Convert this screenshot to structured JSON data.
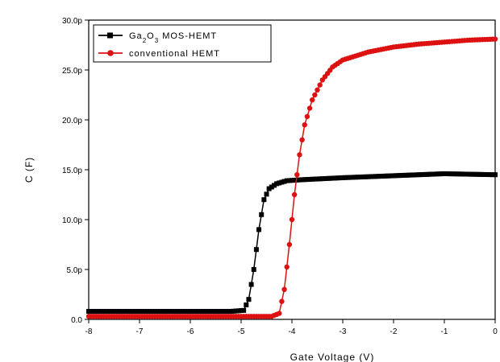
{
  "chart_data": {
    "type": "line",
    "title": "",
    "xlabel": "Gate Voltage (V)",
    "ylabel": "C (F)",
    "xlim": [
      -8,
      0
    ],
    "ylim": [
      0,
      30
    ],
    "x_ticks": [
      -8,
      -7,
      -6,
      -5,
      -4,
      -3,
      -2,
      -1,
      0
    ],
    "x_tick_labels": [
      "-8",
      "-7",
      "-6",
      "-5",
      "-4",
      "-3",
      "-2",
      "-1",
      "0"
    ],
    "y_ticks": [
      0,
      5,
      10,
      15,
      20,
      25,
      30
    ],
    "y_tick_labels": [
      "0.0",
      "5.0p",
      "10.0p",
      "15.0p",
      "20.0p",
      "25.0p",
      "30.0p"
    ],
    "legend_position": "top-left",
    "series": [
      {
        "name": "Ga2O3 MOS-HEMT",
        "legend_parts": [
          {
            "text": "Ga",
            "sub": false
          },
          {
            "text": "2",
            "sub": true
          },
          {
            "text": "O",
            "sub": false
          },
          {
            "text": "3",
            "sub": true
          },
          {
            "text": " MOS-HEMT",
            "sub": false
          }
        ],
        "color": "#000000",
        "marker": "square",
        "keypoints": [
          [
            -8,
            0.8
          ],
          [
            -5.2,
            0.8
          ],
          [
            -4.95,
            0.9
          ],
          [
            -4.85,
            2.0
          ],
          [
            -4.75,
            5.0
          ],
          [
            -4.65,
            9.0
          ],
          [
            -4.55,
            12.0
          ],
          [
            -4.45,
            13.1
          ],
          [
            -4.3,
            13.6
          ],
          [
            -4.1,
            13.9
          ],
          [
            -3.8,
            14.0
          ],
          [
            -3.0,
            14.2
          ],
          [
            -2.0,
            14.4
          ],
          [
            -1.0,
            14.6
          ],
          [
            0,
            14.5
          ]
        ]
      },
      {
        "name": "conventional HEMT",
        "legend_parts": [
          {
            "text": "conventional HEMT",
            "sub": false
          }
        ],
        "color": "#dd1111",
        "marker": "circle",
        "keypoints": [
          [
            -8,
            0.3
          ],
          [
            -4.4,
            0.3
          ],
          [
            -4.25,
            0.6
          ],
          [
            -4.15,
            3.0
          ],
          [
            -4.05,
            7.5
          ],
          [
            -3.95,
            12.5
          ],
          [
            -3.85,
            16.5
          ],
          [
            -3.75,
            19.5
          ],
          [
            -3.6,
            22.0
          ],
          [
            -3.4,
            24.0
          ],
          [
            -3.2,
            25.3
          ],
          [
            -3.0,
            26.0
          ],
          [
            -2.5,
            26.8
          ],
          [
            -2.0,
            27.3
          ],
          [
            -1.5,
            27.6
          ],
          [
            -1.0,
            27.8
          ],
          [
            -0.5,
            28.0
          ],
          [
            0,
            28.1
          ]
        ]
      }
    ]
  }
}
